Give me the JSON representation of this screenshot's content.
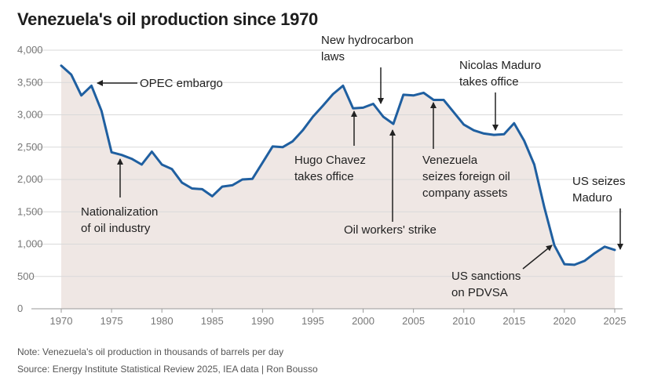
{
  "title": "Venezuela's oil production since 1970",
  "note": "Note: Venezuela's oil production in thousands of barrels per day",
  "source": "Source: Energy Institute Statistical Review 2025, IEA data | Ron Bousso",
  "colors": {
    "line": "#1f5fa0",
    "area": "#efe7e4",
    "grid": "#d9d9d9",
    "text": "#222222"
  },
  "chart_data": {
    "type": "area",
    "xlim": [
      1970,
      2025
    ],
    "ylim": [
      0,
      4000
    ],
    "xticks": [
      1970,
      1975,
      1980,
      1985,
      1990,
      1995,
      2000,
      2005,
      2010,
      2015,
      2020,
      2025
    ],
    "yticks": [
      0,
      500,
      1000,
      1500,
      2000,
      2500,
      3000,
      3500,
      4000
    ],
    "ytick_labels": [
      "0",
      "500",
      "1,000",
      "1,500",
      "2,000",
      "2,500",
      "3,000",
      "3,500",
      "4,000"
    ],
    "grid": true,
    "x": [
      1970,
      1971,
      1972,
      1973,
      1974,
      1975,
      1976,
      1977,
      1978,
      1979,
      1980,
      1981,
      1982,
      1983,
      1984,
      1985,
      1986,
      1987,
      1988,
      1989,
      1990,
      1991,
      1992,
      1993,
      1994,
      1995,
      1996,
      1997,
      1998,
      1999,
      2000,
      2001,
      2002,
      2003,
      2004,
      2005,
      2006,
      2007,
      2008,
      2009,
      2010,
      2011,
      2012,
      2013,
      2014,
      2015,
      2016,
      2017,
      2018,
      2019,
      2020,
      2021,
      2022,
      2023,
      2024,
      2025
    ],
    "y": [
      3760,
      3620,
      3300,
      3450,
      3060,
      2420,
      2380,
      2320,
      2230,
      2430,
      2230,
      2160,
      1950,
      1860,
      1850,
      1740,
      1890,
      1910,
      2000,
      2010,
      2260,
      2510,
      2500,
      2590,
      2760,
      2970,
      3140,
      3320,
      3450,
      3100,
      3110,
      3170,
      2970,
      2860,
      3310,
      3300,
      3340,
      3230,
      3230,
      3040,
      2850,
      2760,
      2710,
      2690,
      2700,
      2870,
      2600,
      2230,
      1570,
      980,
      690,
      680,
      740,
      860,
      960,
      910
    ],
    "annotations": [
      {
        "id": "opec",
        "year": 1973,
        "lines": [
          "OPEC embargo"
        ]
      },
      {
        "id": "nationalization",
        "year": 1976,
        "lines": [
          "Nationalization",
          "of oil industry"
        ]
      },
      {
        "id": "hydrocarbon",
        "year": 2002,
        "lines": [
          "New hydrocarbon",
          "laws"
        ]
      },
      {
        "id": "chavez",
        "year": 1999,
        "lines": [
          "Hugo Chavez",
          "takes office"
        ]
      },
      {
        "id": "strike",
        "year": 2003,
        "lines": [
          "Oil workers' strike"
        ]
      },
      {
        "id": "seizes",
        "year": 2007,
        "lines": [
          "Venezuela",
          "seizes foreign oil",
          "company assets"
        ]
      },
      {
        "id": "maduro",
        "year": 2013,
        "lines": [
          "Nicolas Maduro",
          "takes office"
        ]
      },
      {
        "id": "sanctions",
        "year": 2019,
        "lines": [
          "US sanctions",
          "on PDVSA"
        ]
      },
      {
        "id": "usseizes",
        "year": 2025,
        "lines": [
          "US seizes",
          "Maduro"
        ]
      }
    ]
  }
}
